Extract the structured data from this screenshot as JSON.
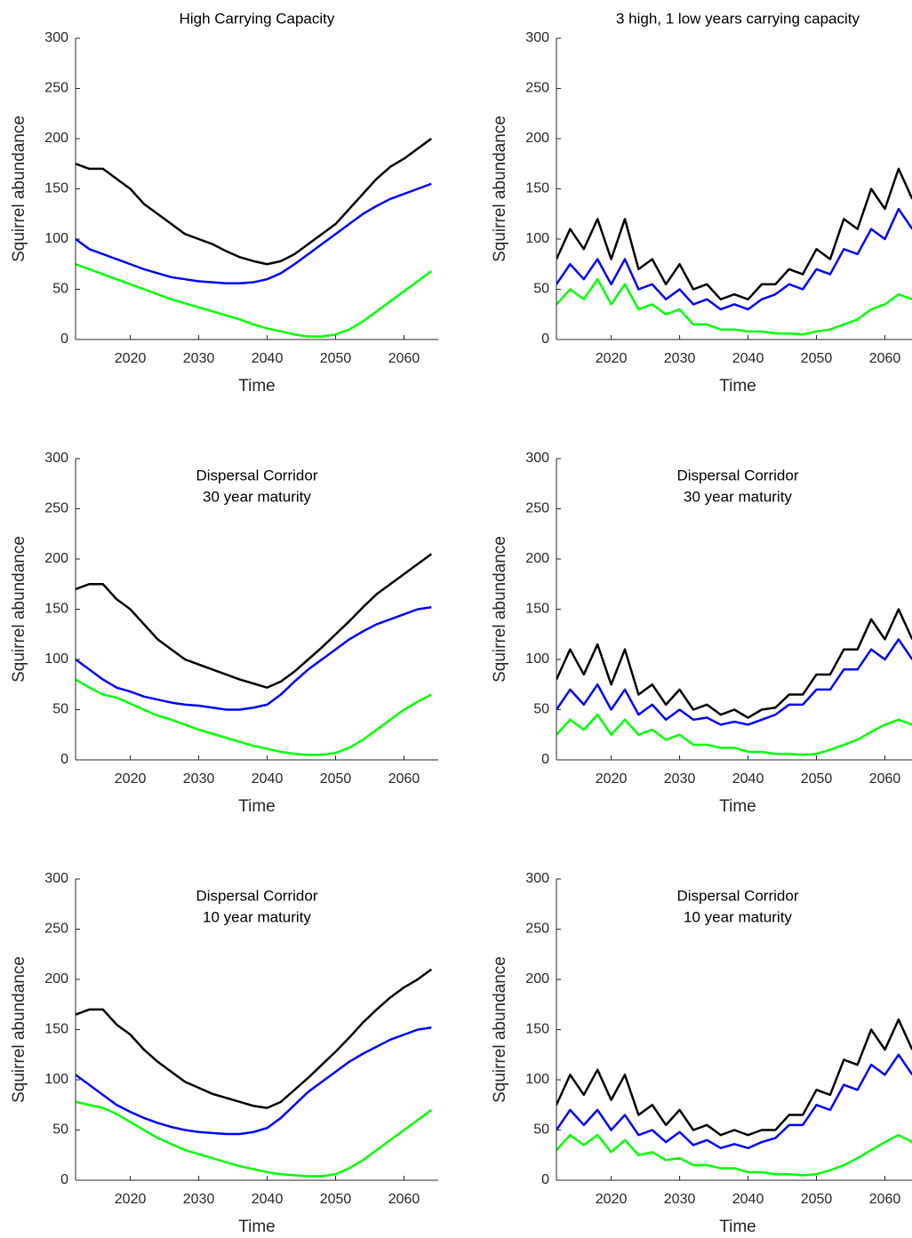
{
  "chart_data": [
    {
      "type": "line",
      "title": [
        "High Carrying Capacity"
      ],
      "xlabel": "Time",
      "ylabel": "Squirrel abundance",
      "xlim": [
        2012,
        2065
      ],
      "ylim": [
        0,
        300
      ],
      "xticks": [
        2020,
        2030,
        2040,
        2050,
        2060
      ],
      "yticks": [
        0,
        50,
        100,
        150,
        200,
        250,
        300
      ],
      "x": [
        2012,
        2014,
        2016,
        2018,
        2020,
        2022,
        2024,
        2026,
        2028,
        2030,
        2032,
        2034,
        2036,
        2038,
        2040,
        2042,
        2044,
        2046,
        2048,
        2050,
        2052,
        2054,
        2056,
        2058,
        2060,
        2062,
        2064
      ],
      "series": [
        {
          "color": "#000000",
          "values": [
            175,
            170,
            170,
            160,
            150,
            135,
            125,
            115,
            105,
            100,
            95,
            88,
            82,
            78,
            75,
            78,
            85,
            95,
            105,
            115,
            130,
            145,
            160,
            172,
            180,
            190,
            200
          ]
        },
        {
          "color": "#0000ff",
          "values": [
            100,
            90,
            85,
            80,
            75,
            70,
            66,
            62,
            60,
            58,
            57,
            56,
            56,
            57,
            60,
            66,
            75,
            85,
            95,
            105,
            115,
            125,
            133,
            140,
            145,
            150,
            155
          ]
        },
        {
          "color": "#00ff00",
          "values": [
            75,
            70,
            65,
            60,
            55,
            50,
            45,
            40,
            36,
            32,
            28,
            24,
            20,
            15,
            11,
            8,
            5,
            3,
            3,
            5,
            10,
            18,
            28,
            38,
            48,
            58,
            68
          ]
        }
      ]
    },
    {
      "type": "line",
      "title": [
        "3 high, 1 low years carrying capacity"
      ],
      "xlabel": "Time",
      "ylabel": "Squirrel abundance",
      "xlim": [
        2012,
        2065
      ],
      "ylim": [
        0,
        300
      ],
      "xticks": [
        2020,
        2030,
        2040,
        2050,
        2060
      ],
      "yticks": [
        0,
        50,
        100,
        150,
        200,
        250,
        300
      ],
      "x": [
        2012,
        2014,
        2016,
        2018,
        2020,
        2022,
        2024,
        2026,
        2028,
        2030,
        2032,
        2034,
        2036,
        2038,
        2040,
        2042,
        2044,
        2046,
        2048,
        2050,
        2052,
        2054,
        2056,
        2058,
        2060,
        2062,
        2064
      ],
      "series": [
        {
          "color": "#000000",
          "values": [
            80,
            110,
            90,
            120,
            80,
            120,
            70,
            80,
            55,
            75,
            50,
            55,
            40,
            45,
            40,
            55,
            55,
            70,
            65,
            90,
            80,
            120,
            110,
            150,
            130,
            170,
            140
          ]
        },
        {
          "color": "#0000ff",
          "values": [
            55,
            75,
            60,
            80,
            55,
            80,
            50,
            55,
            40,
            50,
            35,
            40,
            30,
            35,
            30,
            40,
            45,
            55,
            50,
            70,
            65,
            90,
            85,
            110,
            100,
            130,
            110
          ]
        },
        {
          "color": "#00ff00",
          "values": [
            35,
            50,
            40,
            60,
            35,
            55,
            30,
            35,
            25,
            30,
            15,
            15,
            10,
            10,
            8,
            8,
            6,
            6,
            5,
            8,
            10,
            15,
            20,
            30,
            35,
            45,
            40
          ]
        }
      ]
    },
    {
      "type": "line",
      "title": [
        "Dispersal Corridor",
        "30 year maturity"
      ],
      "xlabel": "Time",
      "ylabel": "Squirrel abundance",
      "xlim": [
        2012,
        2065
      ],
      "ylim": [
        0,
        300
      ],
      "xticks": [
        2020,
        2030,
        2040,
        2050,
        2060
      ],
      "yticks": [
        0,
        50,
        100,
        150,
        200,
        250,
        300
      ],
      "x": [
        2012,
        2014,
        2016,
        2018,
        2020,
        2022,
        2024,
        2026,
        2028,
        2030,
        2032,
        2034,
        2036,
        2038,
        2040,
        2042,
        2044,
        2046,
        2048,
        2050,
        2052,
        2054,
        2056,
        2058,
        2060,
        2062,
        2064
      ],
      "series": [
        {
          "color": "#000000",
          "values": [
            170,
            175,
            175,
            160,
            150,
            135,
            120,
            110,
            100,
            95,
            90,
            85,
            80,
            76,
            72,
            78,
            88,
            100,
            112,
            125,
            138,
            152,
            165,
            175,
            185,
            195,
            205
          ]
        },
        {
          "color": "#0000ff",
          "values": [
            100,
            90,
            80,
            72,
            68,
            63,
            60,
            57,
            55,
            54,
            52,
            50,
            50,
            52,
            55,
            65,
            78,
            90,
            100,
            110,
            120,
            128,
            135,
            140,
            145,
            150,
            152
          ]
        },
        {
          "color": "#00ff00",
          "values": [
            80,
            72,
            65,
            62,
            56,
            50,
            44,
            40,
            35,
            30,
            26,
            22,
            18,
            14,
            11,
            8,
            6,
            5,
            5,
            7,
            12,
            20,
            30,
            40,
            50,
            58,
            65
          ]
        }
      ]
    },
    {
      "type": "line",
      "title": [
        "Dispersal Corridor",
        "30 year maturity"
      ],
      "xlabel": "Time",
      "ylabel": "Squirrel abundance",
      "xlim": [
        2012,
        2065
      ],
      "ylim": [
        0,
        300
      ],
      "xticks": [
        2020,
        2030,
        2040,
        2050,
        2060
      ],
      "yticks": [
        0,
        50,
        100,
        150,
        200,
        250,
        300
      ],
      "x": [
        2012,
        2014,
        2016,
        2018,
        2020,
        2022,
        2024,
        2026,
        2028,
        2030,
        2032,
        2034,
        2036,
        2038,
        2040,
        2042,
        2044,
        2046,
        2048,
        2050,
        2052,
        2054,
        2056,
        2058,
        2060,
        2062,
        2064
      ],
      "series": [
        {
          "color": "#000000",
          "values": [
            80,
            110,
            85,
            115,
            75,
            110,
            65,
            75,
            55,
            70,
            50,
            55,
            45,
            50,
            42,
            50,
            52,
            65,
            65,
            85,
            85,
            110,
            110,
            140,
            120,
            150,
            120
          ]
        },
        {
          "color": "#0000ff",
          "values": [
            50,
            70,
            55,
            75,
            50,
            70,
            45,
            55,
            40,
            50,
            40,
            42,
            35,
            38,
            35,
            40,
            45,
            55,
            55,
            70,
            70,
            90,
            90,
            110,
            100,
            120,
            100
          ]
        },
        {
          "color": "#00ff00",
          "values": [
            25,
            40,
            30,
            45,
            25,
            40,
            25,
            30,
            20,
            25,
            15,
            15,
            12,
            12,
            8,
            8,
            6,
            6,
            5,
            6,
            10,
            15,
            20,
            28,
            35,
            40,
            35
          ]
        }
      ]
    },
    {
      "type": "line",
      "title": [
        "Dispersal Corridor",
        "10 year maturity"
      ],
      "xlabel": "Time",
      "ylabel": "Squirrel abundance",
      "xlim": [
        2012,
        2065
      ],
      "ylim": [
        0,
        300
      ],
      "xticks": [
        2020,
        2030,
        2040,
        2050,
        2060
      ],
      "yticks": [
        0,
        50,
        100,
        150,
        200,
        250,
        300
      ],
      "x": [
        2012,
        2014,
        2016,
        2018,
        2020,
        2022,
        2024,
        2026,
        2028,
        2030,
        2032,
        2034,
        2036,
        2038,
        2040,
        2042,
        2044,
        2046,
        2048,
        2050,
        2052,
        2054,
        2056,
        2058,
        2060,
        2062,
        2064
      ],
      "series": [
        {
          "color": "#000000",
          "values": [
            165,
            170,
            170,
            155,
            145,
            130,
            118,
            108,
            98,
            92,
            86,
            82,
            78,
            74,
            72,
            78,
            90,
            102,
            115,
            128,
            142,
            157,
            170,
            182,
            192,
            200,
            210
          ]
        },
        {
          "color": "#0000ff",
          "values": [
            105,
            95,
            85,
            75,
            68,
            62,
            57,
            53,
            50,
            48,
            47,
            46,
            46,
            48,
            52,
            62,
            75,
            88,
            98,
            108,
            118,
            126,
            133,
            140,
            145,
            150,
            152
          ]
        },
        {
          "color": "#00ff00",
          "values": [
            78,
            75,
            72,
            66,
            58,
            50,
            42,
            36,
            30,
            26,
            22,
            18,
            14,
            11,
            8,
            6,
            5,
            4,
            4,
            6,
            12,
            20,
            30,
            40,
            50,
            60,
            70
          ]
        }
      ]
    },
    {
      "type": "line",
      "title": [
        "Dispersal Corridor",
        "10 year maturity"
      ],
      "xlabel": "Time",
      "ylabel": "Squirrel abundance",
      "xlim": [
        2012,
        2065
      ],
      "ylim": [
        0,
        300
      ],
      "xticks": [
        2020,
        2030,
        2040,
        2050,
        2060
      ],
      "yticks": [
        0,
        50,
        100,
        150,
        200,
        250,
        300
      ],
      "x": [
        2012,
        2014,
        2016,
        2018,
        2020,
        2022,
        2024,
        2026,
        2028,
        2030,
        2032,
        2034,
        2036,
        2038,
        2040,
        2042,
        2044,
        2046,
        2048,
        2050,
        2052,
        2054,
        2056,
        2058,
        2060,
        2062,
        2064
      ],
      "series": [
        {
          "color": "#000000",
          "values": [
            75,
            105,
            85,
            110,
            80,
            105,
            65,
            75,
            55,
            70,
            50,
            55,
            45,
            50,
            45,
            50,
            50,
            65,
            65,
            90,
            85,
            120,
            115,
            150,
            130,
            160,
            130
          ]
        },
        {
          "color": "#0000ff",
          "values": [
            50,
            70,
            55,
            70,
            50,
            65,
            45,
            50,
            38,
            48,
            35,
            40,
            32,
            36,
            32,
            38,
            42,
            55,
            55,
            75,
            70,
            95,
            90,
            115,
            105,
            125,
            105
          ]
        },
        {
          "color": "#00ff00",
          "values": [
            30,
            45,
            35,
            45,
            28,
            40,
            25,
            28,
            20,
            22,
            15,
            15,
            12,
            12,
            8,
            8,
            6,
            6,
            5,
            6,
            10,
            15,
            22,
            30,
            38,
            45,
            38
          ]
        }
      ]
    }
  ]
}
